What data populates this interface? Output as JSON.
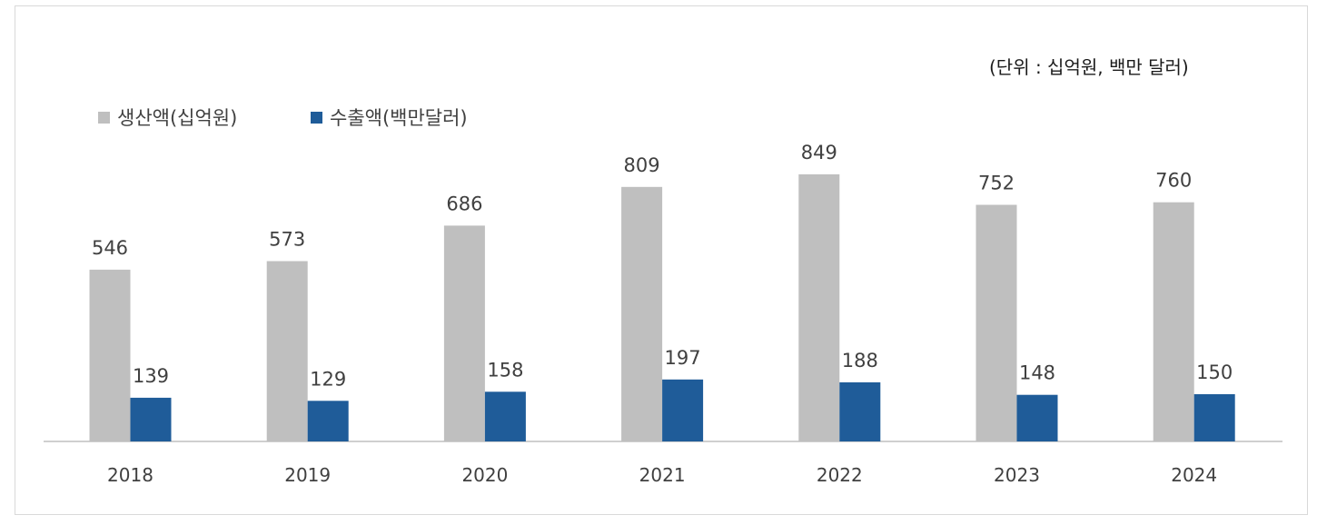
{
  "unit_note": "(단위 : 십억원, 백만 달러)",
  "chart_data": {
    "type": "bar",
    "categories": [
      "2018",
      "2019",
      "2020",
      "2021",
      "2022",
      "2023",
      "2024"
    ],
    "series": [
      {
        "name": "생산액(십억원)",
        "color": "#bfbfbf",
        "values": [
          546,
          573,
          686,
          809,
          849,
          752,
          760
        ]
      },
      {
        "name": "수출액(백만달러)",
        "color": "#1f5c99",
        "values": [
          139,
          129,
          158,
          197,
          188,
          148,
          150
        ]
      }
    ],
    "title": "",
    "xlabel": "",
    "ylabel": "",
    "ylim": [
      0,
      1000
    ],
    "grid": false,
    "legend_position": "top-left",
    "data_labels": true
  }
}
